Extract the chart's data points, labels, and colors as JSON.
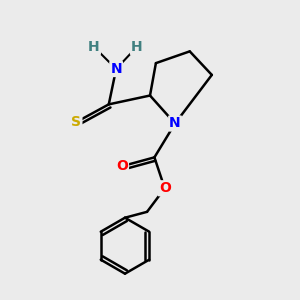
{
  "background_color": "#ebebeb",
  "atom_colors": {
    "C": "#000000",
    "N": "#0000ff",
    "O": "#ff0000",
    "S": "#ccaa00",
    "H": "#408080"
  },
  "figsize": [
    3.0,
    3.0
  ],
  "dpi": 100
}
